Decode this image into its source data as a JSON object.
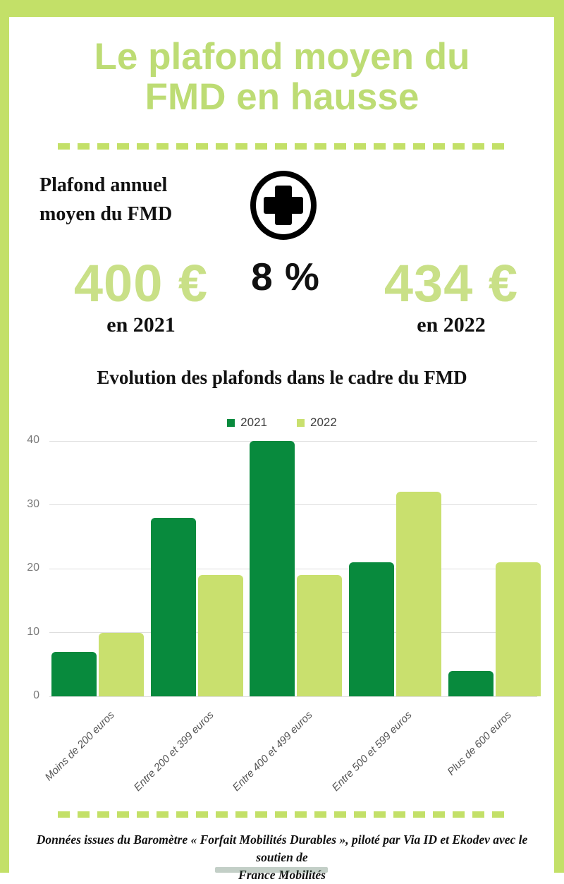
{
  "colors": {
    "frame_green": "#c3e068",
    "title_green": "#bddc74",
    "number_green": "#c9e087",
    "dark_green_2021": "#088a3d",
    "light_green_2022": "#c9e06e",
    "text_black": "#111111",
    "axis_gray": "#7a7a7a",
    "gridline_gray": "#dedede"
  },
  "header": {
    "title_line1": "Le plafond moyen du",
    "title_line2": "FMD en hausse"
  },
  "stats": {
    "label_line1": "Plafond annuel",
    "label_line2": "moyen du FMD",
    "plus_icon": "plus-in-circle-icon",
    "percent_text": "8 %",
    "left": {
      "value": "400 €",
      "caption": "en 2021"
    },
    "right": {
      "value": "434 €",
      "caption": "en 2022"
    }
  },
  "chart": {
    "title": "Evolution des plafonds dans le cadre du FMD"
  },
  "chart_data": {
    "type": "bar",
    "title": "Evolution des plafonds dans le cadre du FMD",
    "categories": [
      "Moins de 200 euros",
      "Entre 200 et 399 euros",
      "Entre 400 et 499 euros",
      "Entre 500 et 599 euros",
      "Plus de 600 euros"
    ],
    "series": [
      {
        "name": "2021",
        "color": "#088a3d",
        "values": [
          7,
          28,
          40,
          21,
          4
        ]
      },
      {
        "name": "2022",
        "color": "#c9e06e",
        "values": [
          10,
          19,
          19,
          32,
          21
        ]
      }
    ],
    "xlabel": "",
    "ylabel": "",
    "ylim": [
      0,
      40
    ],
    "yticks": [
      0,
      10,
      20,
      30,
      40
    ],
    "grid": true,
    "legend_position": "top-center"
  },
  "footer": {
    "source_line1": "Données issues du Baromètre « Forfait Mobilités Durables », piloté par Via ID et Ekodev avec le soutien de",
    "source_line2": "France Mobilités"
  }
}
